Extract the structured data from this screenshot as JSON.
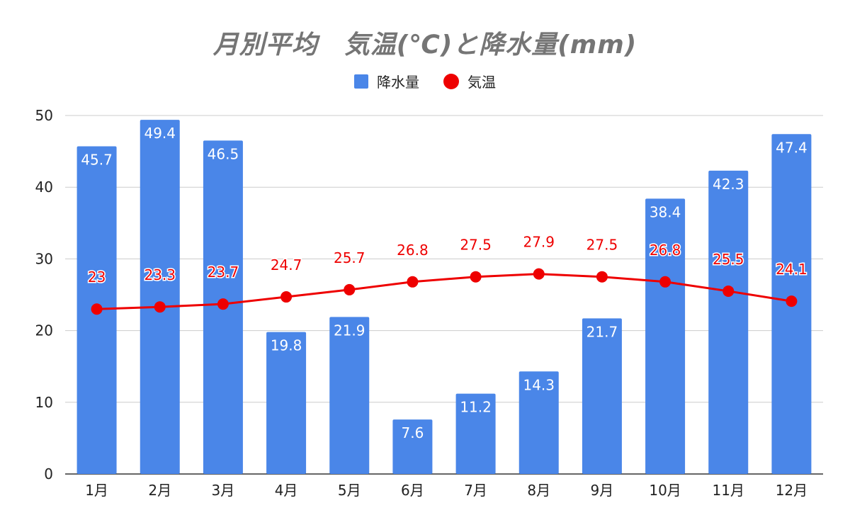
{
  "chart_data": {
    "type": "bar",
    "title": "月別平均　気温(℃)と降水量(mm)",
    "categories": [
      "1月",
      "2月",
      "3月",
      "4月",
      "5月",
      "6月",
      "7月",
      "8月",
      "9月",
      "10月",
      "11月",
      "12月"
    ],
    "series": [
      {
        "name": "降水量",
        "type": "bar",
        "color": "#4a86e8",
        "values": [
          45.7,
          49.4,
          46.5,
          19.8,
          21.9,
          7.6,
          11.2,
          14.3,
          21.7,
          38.4,
          42.3,
          47.4
        ]
      },
      {
        "name": "気温",
        "type": "line",
        "color": "#ee0000",
        "values": [
          23,
          23.3,
          23.7,
          24.7,
          25.7,
          26.8,
          27.5,
          27.9,
          27.5,
          26.8,
          25.5,
          24.1
        ]
      }
    ],
    "ylim": [
      0,
      50
    ],
    "yticks": [
      0,
      10,
      20,
      30,
      40,
      50
    ],
    "grid": true,
    "legend_position": "top"
  }
}
